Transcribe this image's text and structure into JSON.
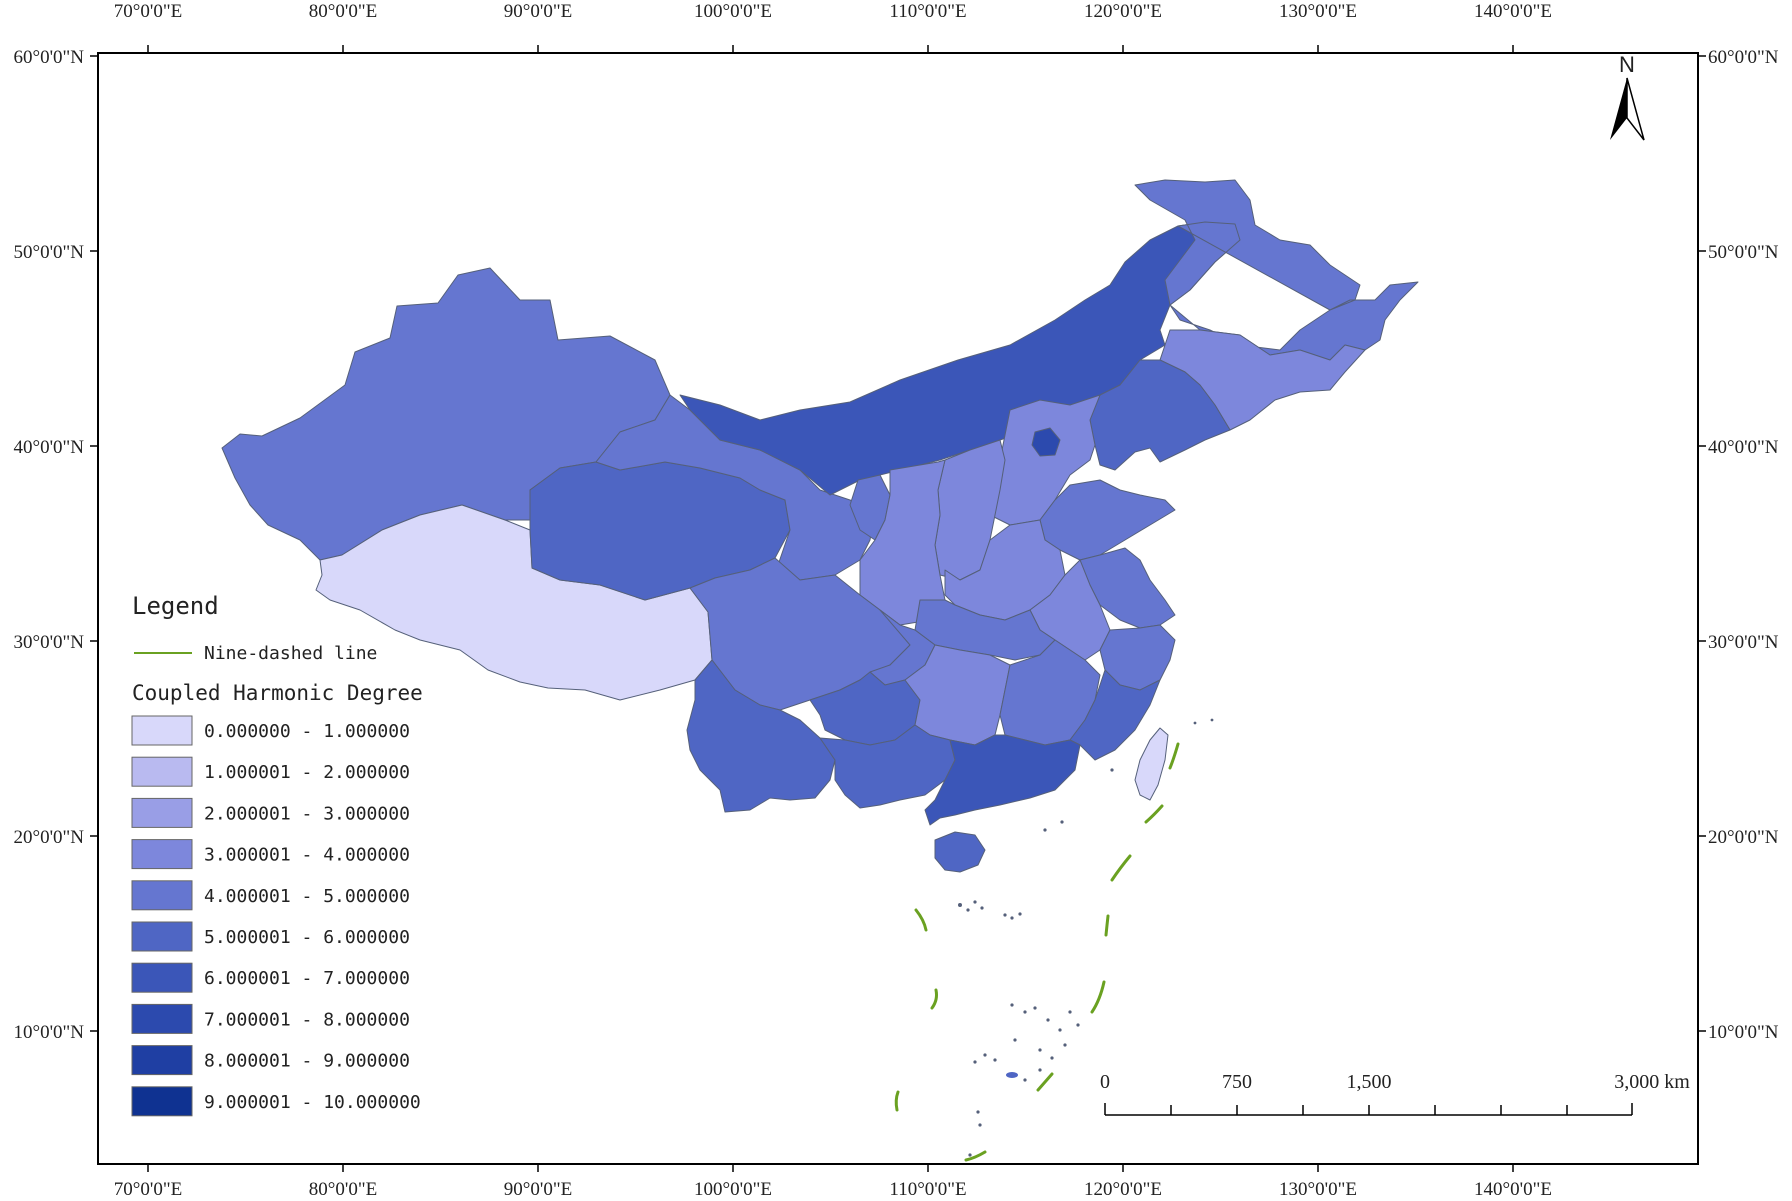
{
  "map": {
    "longitude_labels": [
      "70°0'0\"E",
      "80°0'0\"E",
      "90°0'0\"E",
      "100°0'0\"E",
      "110°0'0\"E",
      "120°0'0\"E",
      "130°0'0\"E",
      "140°0'0\"E"
    ],
    "latitude_labels": [
      "60°0'0\"N",
      "50°0'0\"N",
      "40°0'0\"N",
      "30°0'0\"N",
      "20°0'0\"N",
      "10°0'0\"N"
    ],
    "north_arrow": {
      "label": "N",
      "icon": "north-arrow-icon"
    },
    "scale_bar": {
      "labels": [
        "0",
        "750",
        "1,500",
        "3,000 km"
      ]
    }
  },
  "legend": {
    "title": "Legend",
    "line_label": "Nine-dashed line",
    "line_color": "#6aa121",
    "section_title": "Coupled Harmonic Degree",
    "classes": [
      {
        "label": "0.000000 - 1.000000",
        "color": "#d8d8fa"
      },
      {
        "label": "1.000001 - 2.000000",
        "color": "#b9baf0"
      },
      {
        "label": "2.000001 - 3.000000",
        "color": "#999ee6"
      },
      {
        "label": "3.000001 - 4.000000",
        "color": "#7d87dc"
      },
      {
        "label": "4.000001 - 5.000000",
        "color": "#6576d0"
      },
      {
        "label": "5.000001 - 6.000000",
        "color": "#4f66c4"
      },
      {
        "label": "6.000001 - 7.000000",
        "color": "#3b56b8"
      },
      {
        "label": "7.000001 - 8.000000",
        "color": "#2c4aae"
      },
      {
        "label": "8.000001 - 9.000000",
        "color": "#1f3fa3"
      },
      {
        "label": "9.000001 - 10.000000",
        "color": "#0f3291"
      }
    ]
  }
}
